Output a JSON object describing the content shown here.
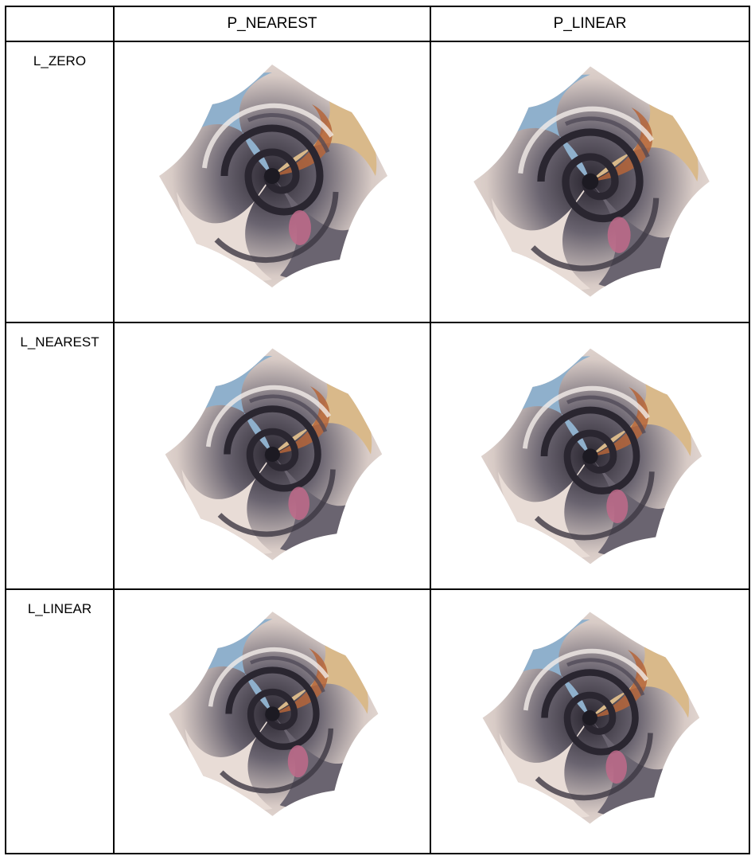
{
  "table": {
    "corner": "",
    "columns": [
      "P_NEAREST",
      "P_LINEAR"
    ],
    "rows": [
      {
        "label": "L_ZERO",
        "images": [
          "swirl-image",
          "swirl-image"
        ]
      },
      {
        "label": "L_NEAREST",
        "images": [
          "swirl-image",
          "swirl-image"
        ]
      },
      {
        "label": "L_LINEAR",
        "images": [
          "swirl-image",
          "swirl-image"
        ]
      }
    ]
  },
  "colors": {
    "sky": "#8fb0cc",
    "sand": "#d9b98a",
    "rust": "#b5653a",
    "stone": "#6a6470",
    "pale": "#e8dcd6",
    "dark": "#2a2630",
    "pink": "#c06a8a"
  }
}
